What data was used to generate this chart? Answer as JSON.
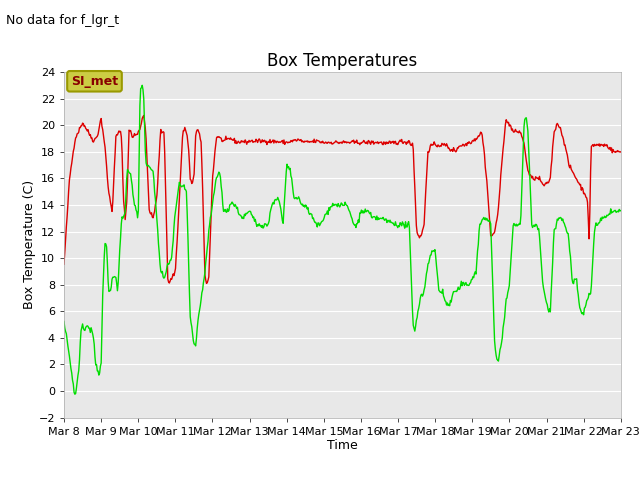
{
  "title": "Box Temperatures",
  "no_data_label": "No data for f_lgr_t",
  "si_met_label": "SI_met",
  "ylabel": "Box Temperature (C)",
  "xlabel": "Time",
  "ylim": [
    -2,
    24
  ],
  "yticks": [
    -2,
    0,
    2,
    4,
    6,
    8,
    10,
    12,
    14,
    16,
    18,
    20,
    22,
    24
  ],
  "xtick_labels": [
    "Mar 8",
    "Mar 9",
    "Mar 10",
    "Mar 11",
    "Mar 12",
    "Mar 13",
    "Mar 14",
    "Mar 15",
    "Mar 16",
    "Mar 17",
    "Mar 18",
    "Mar 19",
    "Mar 20",
    "Mar 21",
    "Mar 22",
    "Mar 23"
  ],
  "panel_color": "#dd0000",
  "tower_color": "#00dd00",
  "plot_bg_color": "#e8e8e8",
  "grid_color": "#ffffff",
  "si_met_bg": "#cccc44",
  "si_met_text_color": "#880000",
  "si_met_edge_color": "#999900",
  "title_fontsize": 12,
  "axis_fontsize": 9,
  "tick_fontsize": 8,
  "legend_fontsize": 9,
  "no_data_fontsize": 9
}
